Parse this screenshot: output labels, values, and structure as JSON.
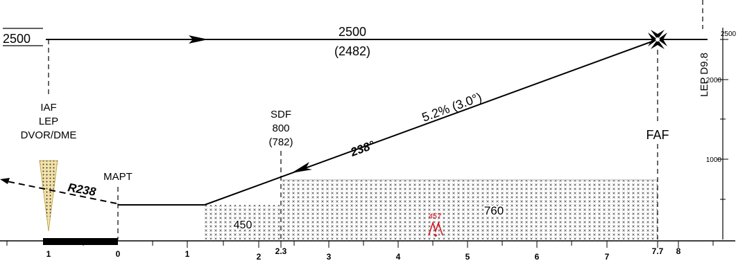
{
  "profile": {
    "initial_altitude_label": "2500",
    "level_altitude": "2500",
    "level_altitude_height": "(2482)",
    "descent_gradient": "5.2% (3.0°)",
    "final_course": "238°",
    "missed_approach_radial": "R238",
    "terrain_elevation": "457"
  },
  "fixes": {
    "iaf": {
      "line1": "IAF",
      "line2": "LEP",
      "line3": "DVOR/DME"
    },
    "sdf": {
      "line1": "SDF",
      "line2": "800",
      "line3": "(782)"
    },
    "faf": {
      "label": "FAF",
      "distance_fix": "LEP D9.8"
    },
    "mapt": {
      "label": "MAPT"
    }
  },
  "obstacle_clearance": {
    "segment_before_sdf": "450",
    "segment_after_sdf": "760"
  },
  "altitude_scale": {
    "ticks": [
      "2500",
      "2000",
      "1000"
    ]
  },
  "distance_scale": {
    "ticks": [
      "1",
      "0",
      "1",
      "2",
      "2.3",
      "3",
      "4",
      "5",
      "6",
      "7",
      "7.7",
      "8"
    ]
  },
  "colors": {
    "line": "#000000",
    "terrain_symbol": "#d4101a",
    "vor_fill": "#f3e2a8",
    "hatch": "#555555"
  },
  "icons": {
    "faf_symbol": "maltese-cross-icon",
    "terrain_symbol": "peak-elevation-icon",
    "vor_cone": "navaid-cone-icon"
  }
}
